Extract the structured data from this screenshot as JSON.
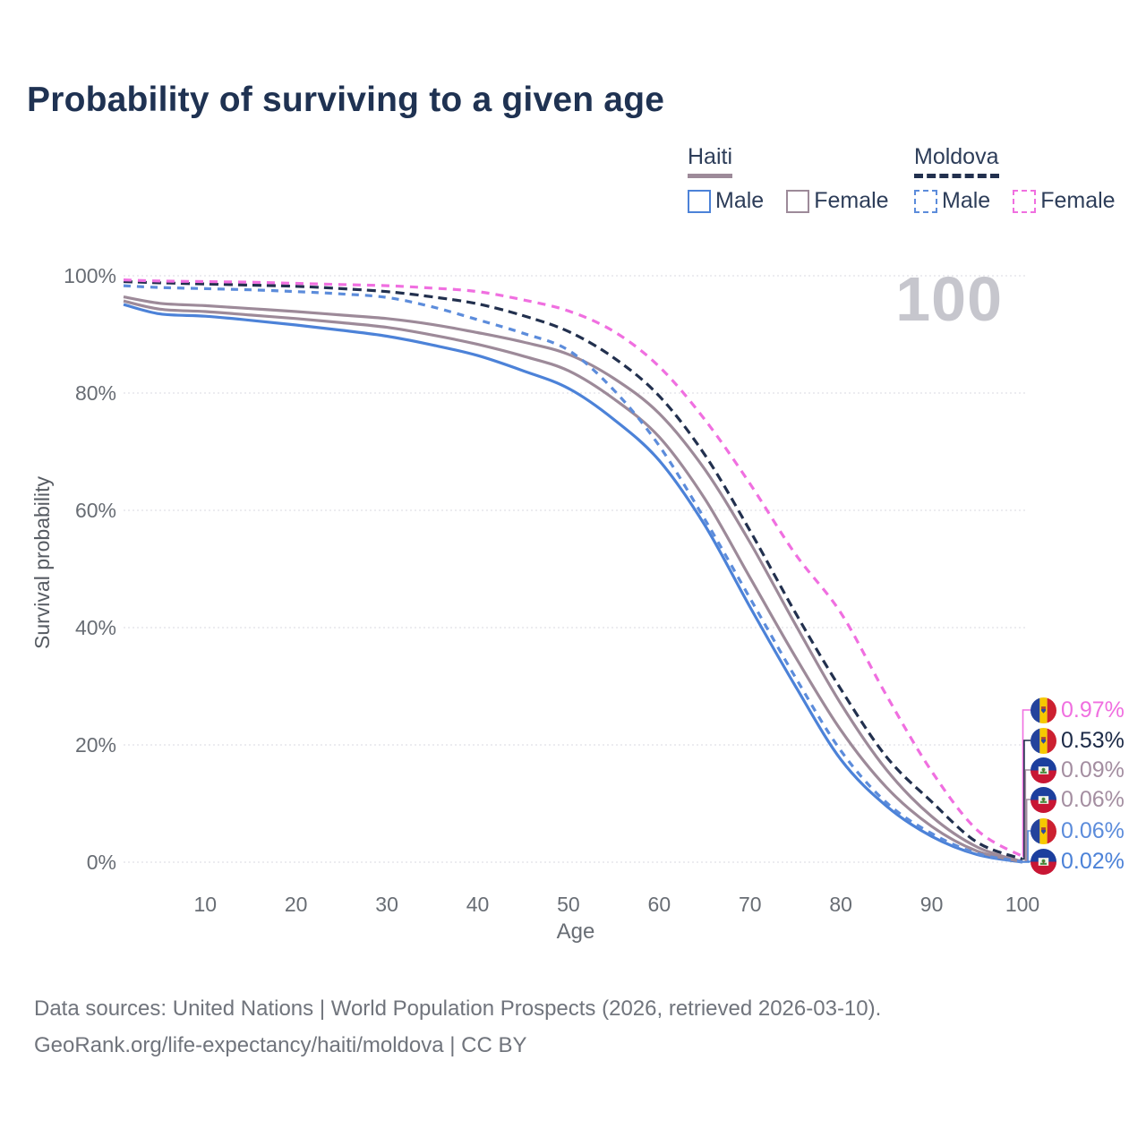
{
  "title": "Probability of surviving to a given age",
  "watermark": "100",
  "legend": {
    "groups": [
      {
        "country": "Haiti",
        "line_style": "solid",
        "underline_color": "#9d8a99",
        "items": [
          {
            "label": "Male",
            "color": "#4c82d8"
          },
          {
            "label": "Female",
            "color": "#9d8a99"
          }
        ]
      },
      {
        "country": "Moldova",
        "line_style": "dashed",
        "underline_color": "#22304e",
        "items": [
          {
            "label": "Male",
            "color": "#5c8cdb"
          },
          {
            "label": "Female",
            "color": "#f06fe0"
          }
        ]
      }
    ]
  },
  "chart_data": {
    "type": "line",
    "title": "Probability of surviving to a given age",
    "xlabel": "Age",
    "ylabel": "Survival probability",
    "xlim": [
      1,
      100
    ],
    "ylim": [
      0,
      100
    ],
    "grid": "horizontal",
    "legend_position": "top-right",
    "xticks": [
      10,
      20,
      30,
      40,
      50,
      60,
      70,
      80,
      90,
      100
    ],
    "yticks": [
      {
        "value": 0,
        "label": "0%"
      },
      {
        "value": 20,
        "label": "20%"
      },
      {
        "value": 40,
        "label": "40%"
      },
      {
        "value": 60,
        "label": "60%"
      },
      {
        "value": 80,
        "label": "80%"
      },
      {
        "value": 100,
        "label": "100%"
      }
    ],
    "x": [
      1,
      5,
      10,
      15,
      20,
      25,
      30,
      35,
      40,
      45,
      50,
      55,
      60,
      65,
      70,
      75,
      80,
      85,
      90,
      95,
      100
    ],
    "series": [
      {
        "id": "haiti_male",
        "name": "Haiti Male",
        "country": "Haiti",
        "sex": "Male",
        "color": "#4c82d8",
        "line_style": "solid",
        "values": [
          95.1,
          93.5,
          93.1,
          92.4,
          91.6,
          90.7,
          89.7,
          88.2,
          86.4,
          83.8,
          80.8,
          75.5,
          68.5,
          57.5,
          43.5,
          30.0,
          17.5,
          9.6,
          4.4,
          1.3,
          0.02
        ]
      },
      {
        "id": "haiti_both",
        "name": "Haiti Both sexes",
        "country": "Haiti",
        "sex": "Both",
        "color": "#9d8a99",
        "line_style": "solid",
        "values": [
          95.7,
          94.3,
          93.9,
          93.3,
          92.7,
          92.0,
          91.2,
          89.9,
          88.3,
          86.3,
          83.8,
          79.0,
          72.5,
          62.0,
          48.5,
          35.0,
          22.5,
          12.8,
          6.1,
          1.9,
          0.06
        ]
      },
      {
        "id": "haiti_female",
        "name": "Haiti Female",
        "country": "Haiti",
        "sex": "Female",
        "color": "#9d8a99",
        "line_style": "solid",
        "values": [
          96.4,
          95.3,
          94.9,
          94.4,
          93.9,
          93.3,
          92.7,
          91.7,
          90.3,
          88.7,
          86.6,
          82.5,
          76.5,
          67.0,
          54.5,
          40.5,
          27.0,
          15.8,
          7.8,
          2.6,
          0.09
        ]
      },
      {
        "id": "moldova_male",
        "name": "Moldova Male",
        "country": "Moldova",
        "sex": "Male",
        "color": "#5c8cdb",
        "line_style": "dashed",
        "values": [
          98.3,
          98.0,
          97.8,
          97.6,
          97.3,
          96.9,
          96.3,
          94.7,
          92.5,
          90.2,
          87.3,
          80.5,
          71.0,
          58.5,
          45.0,
          31.5,
          19.0,
          10.2,
          4.9,
          1.5,
          0.06
        ]
      },
      {
        "id": "moldova_both",
        "name": "Moldova Both sexes",
        "country": "Moldova",
        "sex": "Both",
        "color": "#22304e",
        "line_style": "dashed",
        "values": [
          99.0,
          98.8,
          98.6,
          98.4,
          98.2,
          97.8,
          97.3,
          96.4,
          95.2,
          93.2,
          90.5,
          86.0,
          79.5,
          69.5,
          56.5,
          42.5,
          29.5,
          18.0,
          10.3,
          3.4,
          0.53
        ]
      },
      {
        "id": "moldova_female",
        "name": "Moldova Female",
        "country": "Moldova",
        "sex": "Female",
        "color": "#f06fe0",
        "line_style": "dashed",
        "values": [
          99.3,
          99.1,
          99.0,
          98.9,
          98.7,
          98.5,
          98.3,
          97.9,
          97.3,
          95.9,
          94.0,
          90.5,
          84.5,
          75.5,
          64.5,
          52.5,
          42.5,
          28.5,
          15.5,
          5.5,
          0.97
        ]
      }
    ]
  },
  "end_labels": [
    {
      "country": "Moldova",
      "flag": "moldova-flag-icon",
      "value": "0.97%",
      "color": "#f06fe0",
      "series": "moldova_female"
    },
    {
      "country": "Moldova",
      "flag": "moldova-flag-icon",
      "value": "0.53%",
      "color": "#1c2a47",
      "series": "moldova_both"
    },
    {
      "country": "Haiti",
      "flag": "haiti-flag-icon",
      "value": "0.09%",
      "color": "#a48ea1",
      "series": "haiti_female"
    },
    {
      "country": "Haiti",
      "flag": "haiti-flag-icon",
      "value": "0.06%",
      "color": "#a48ea1",
      "series": "haiti_both"
    },
    {
      "country": "Moldova",
      "flag": "moldova-flag-icon",
      "value": "0.06%",
      "color": "#5c8cdb",
      "series": "moldova_male"
    },
    {
      "country": "Haiti",
      "flag": "haiti-flag-icon",
      "value": "0.02%",
      "color": "#4c82d8",
      "series": "haiti_male"
    }
  ],
  "footer": {
    "line1": "Data sources: United Nations | World Population Prospects (2026, retrieved 2026-03-10).",
    "line2": "GeoRank.org/life-expectancy/haiti/moldova | CC BY"
  },
  "colors": {
    "title_text": "#1f3252",
    "axis_text": "#686d74",
    "footer_text": "#70747c",
    "watermark": "#c6c6cd",
    "grid": "#dadae1",
    "background": "#ffffff"
  }
}
